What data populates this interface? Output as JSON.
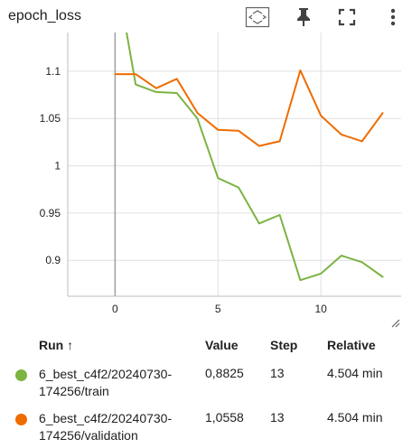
{
  "card": {
    "title": "epoch_loss",
    "icons": [
      "fit-domain-icon",
      "pin-icon",
      "fullscreen-icon",
      "more-vert-icon"
    ]
  },
  "chart_data": {
    "type": "line",
    "title": "",
    "xlim": [
      -2.3,
      13.9
    ],
    "ylim": [
      0.862,
      1.141
    ],
    "xticks": [
      0,
      5,
      10
    ],
    "xtick_labels": [
      "0",
      "5",
      "10"
    ],
    "yticks": [
      0.9,
      0.95,
      1.0,
      1.05,
      1.1
    ],
    "ytick_labels": [
      "0.9",
      "0.95",
      "1",
      "1.05",
      "1.1"
    ],
    "grid": true,
    "series": [
      {
        "name": "6_best_c4f2/20240730-174256/train",
        "color": "#7cb342",
        "x": [
          0,
          1,
          2,
          3,
          4,
          5,
          6,
          7,
          8,
          9,
          10,
          11,
          12,
          13
        ],
        "y": [
          1.21,
          1.086,
          1.078,
          1.077,
          1.05,
          0.987,
          0.977,
          0.939,
          0.948,
          0.879,
          0.886,
          0.905,
          0.898,
          0.8825
        ]
      },
      {
        "name": "6_best_c4f2/20240730-174256/validation",
        "color": "#ef6c00",
        "x": [
          0,
          1,
          2,
          3,
          4,
          5,
          6,
          7,
          8,
          9,
          10,
          11,
          12,
          13
        ],
        "y": [
          1.097,
          1.097,
          1.082,
          1.092,
          1.056,
          1.038,
          1.037,
          1.021,
          1.026,
          1.101,
          1.053,
          1.033,
          1.026,
          1.0558
        ]
      }
    ]
  },
  "legend": {
    "headers": {
      "run": "Run ↑",
      "value": "Value",
      "step": "Step",
      "relative": "Relative"
    },
    "rows": [
      {
        "color": "#7cb342",
        "run_line1": "6_best_c4f2/20240730-",
        "run_line2": "174256/train",
        "value": "0,8825",
        "step": "13",
        "relative": "4.504 min"
      },
      {
        "color": "#ef6c00",
        "run_line1": "6_best_c4f2/20240730-",
        "run_line2": "174256/validation",
        "value": "1,0558",
        "step": "13",
        "relative": "4.504 min"
      }
    ]
  }
}
